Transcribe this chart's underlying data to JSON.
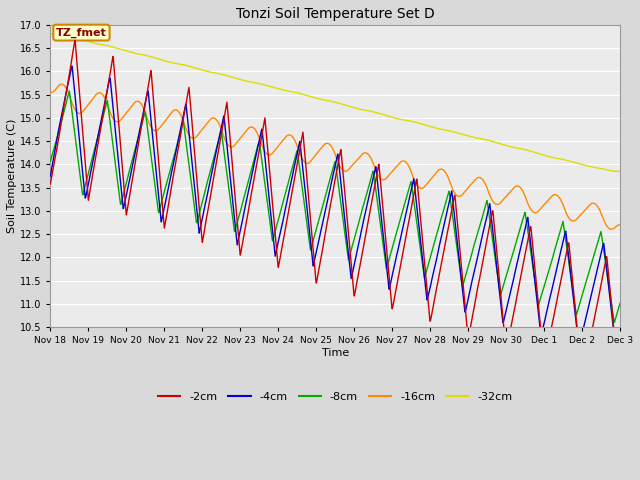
{
  "title": "Tonzi Soil Temperature Set D",
  "xlabel": "Time",
  "ylabel": "Soil Temperature (C)",
  "ylim": [
    10.5,
    17.0
  ],
  "yticks": [
    10.5,
    11.0,
    11.5,
    12.0,
    12.5,
    13.0,
    13.5,
    14.0,
    14.5,
    15.0,
    15.5,
    16.0,
    16.5,
    17.0
  ],
  "xtick_labels": [
    "Nov 18",
    "Nov 19",
    "Nov 20",
    "Nov 21",
    "Nov 22",
    "Nov 23",
    "Nov 24",
    "Nov 25",
    "Nov 26",
    "Nov 27",
    "Nov 28",
    "Nov 29",
    "Nov 30",
    "Dec 1",
    "Dec 2",
    "Dec 3"
  ],
  "colors": {
    "-2cm": "#cc0000",
    "-4cm": "#0000cc",
    "-8cm": "#00aa00",
    "-16cm": "#ff8800",
    "-32cm": "#dddd00"
  },
  "legend_label": "TZ_fmet",
  "background_color": "#d9d9d9",
  "plot_bg": "#ebebeb",
  "n_points": 1440,
  "t_days": 15
}
